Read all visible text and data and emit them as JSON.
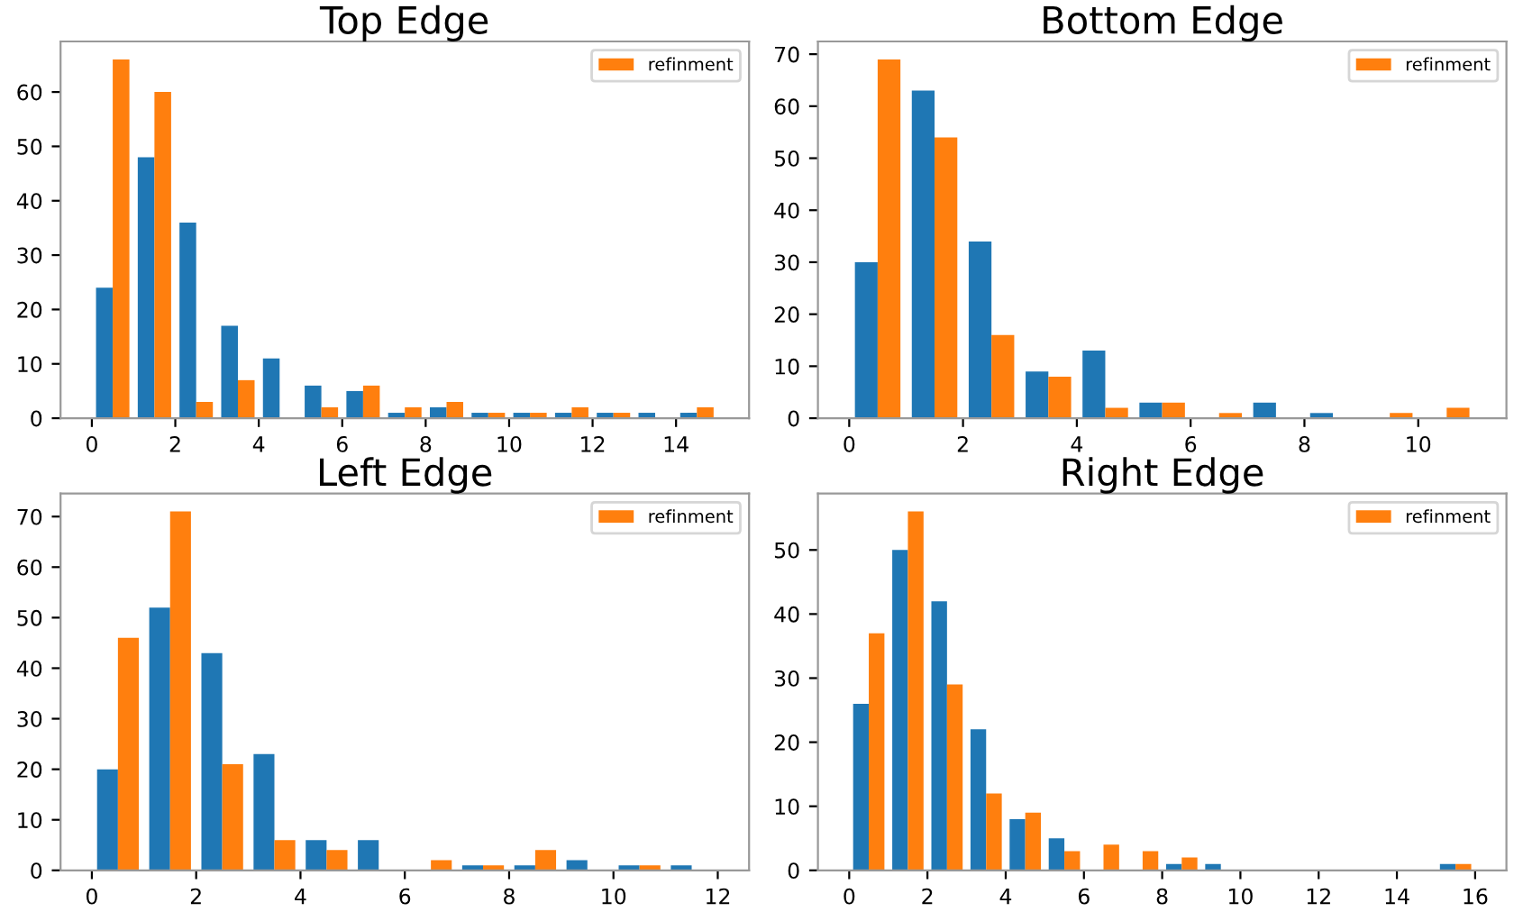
{
  "chart_data": [
    {
      "type": "histogram",
      "title": "Top Edge",
      "bins": [
        0,
        1,
        2,
        3,
        4,
        5,
        6,
        7,
        8,
        9,
        10,
        11,
        12,
        13,
        14,
        15
      ],
      "legend": "top right",
      "grid": false,
      "series": [
        {
          "color": "#1f77b4",
          "values": [
            24,
            48,
            36,
            17,
            11,
            6,
            5,
            1,
            2,
            1,
            1,
            1,
            1,
            1,
            1
          ]
        },
        {
          "name": "refinment",
          "color": "#ff7f0e",
          "values": [
            66,
            60,
            3,
            7,
            0,
            2,
            6,
            2,
            3,
            1,
            1,
            2,
            1,
            0,
            2
          ]
        }
      ],
      "xlim": [
        -0.75,
        15.75
      ],
      "xticks": [
        0,
        2,
        4,
        6,
        8,
        10,
        12,
        14
      ],
      "ylim": [
        0,
        69.3
      ],
      "yticks": [
        0,
        10,
        20,
        30,
        40,
        50,
        60
      ]
    },
    {
      "type": "histogram",
      "title": "Bottom Edge",
      "bins": [
        0,
        1,
        2,
        3,
        4,
        5,
        6,
        7,
        8,
        9,
        10,
        11
      ],
      "legend": "top right",
      "grid": false,
      "series": [
        {
          "color": "#1f77b4",
          "values": [
            30,
            63,
            34,
            9,
            13,
            3,
            0,
            3,
            1,
            0,
            0
          ]
        },
        {
          "name": "refinment",
          "color": "#ff7f0e",
          "values": [
            69,
            54,
            16,
            8,
            2,
            3,
            1,
            0,
            0,
            1,
            2
          ]
        }
      ],
      "xlim": [
        -0.55,
        11.55
      ],
      "xticks": [
        0,
        2,
        4,
        6,
        8,
        10
      ],
      "ylim": [
        0,
        72.45
      ],
      "yticks": [
        0,
        10,
        20,
        30,
        40,
        50,
        60,
        70
      ]
    },
    {
      "type": "histogram",
      "title": "Left Edge",
      "bins": [
        0,
        1,
        2,
        3,
        4,
        5,
        6,
        7,
        8,
        9,
        10,
        11,
        12
      ],
      "legend": "top right",
      "grid": false,
      "series": [
        {
          "color": "#1f77b4",
          "values": [
            20,
            52,
            43,
            23,
            6,
            6,
            0,
            1,
            1,
            2,
            1,
            1
          ]
        },
        {
          "name": "refinment",
          "color": "#ff7f0e",
          "values": [
            46,
            71,
            21,
            6,
            4,
            0,
            2,
            1,
            4,
            0,
            1,
            0
          ]
        }
      ],
      "xlim": [
        -0.6,
        12.6
      ],
      "xticks": [
        0,
        2,
        4,
        6,
        8,
        10,
        12
      ],
      "ylim": [
        0,
        74.55
      ],
      "yticks": [
        0,
        10,
        20,
        30,
        40,
        50,
        60,
        70
      ]
    },
    {
      "type": "histogram",
      "title": "Right Edge",
      "bins": [
        0,
        1,
        2,
        3,
        4,
        5,
        6,
        7,
        8,
        9,
        10,
        11,
        12,
        13,
        14,
        15,
        16
      ],
      "legend": "top right",
      "grid": false,
      "series": [
        {
          "color": "#1f77b4",
          "values": [
            26,
            50,
            42,
            22,
            8,
            5,
            0,
            0,
            1,
            1,
            0,
            0,
            0,
            0,
            0,
            1
          ]
        },
        {
          "name": "refinment",
          "color": "#ff7f0e",
          "values": [
            37,
            56,
            29,
            12,
            9,
            3,
            4,
            3,
            2,
            0,
            0,
            0,
            0,
            0,
            0,
            1
          ]
        }
      ],
      "xlim": [
        -0.8,
        16.8
      ],
      "xticks": [
        0,
        2,
        4,
        6,
        8,
        10,
        12,
        14,
        16
      ],
      "ylim": [
        0,
        58.8
      ],
      "yticks": [
        0,
        10,
        20,
        30,
        40,
        50
      ]
    }
  ]
}
